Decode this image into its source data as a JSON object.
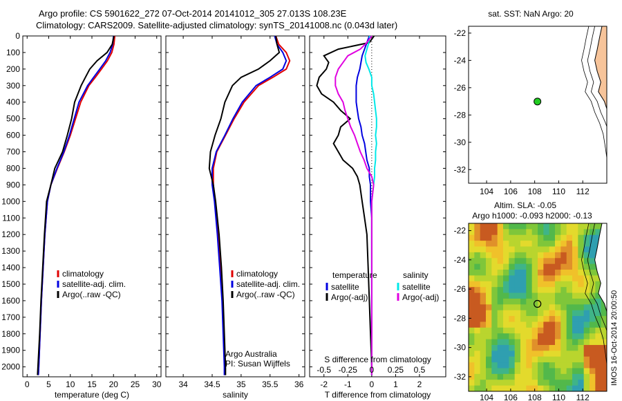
{
  "header": {
    "title_line1": "Argo profile: CS 5901622_272 07-Oct-2014 20141012_305 27.013S 108.23E",
    "title_line2": "Climatology: CARS2009. Satellite-adjusted climatology: synTS_20141008.nc (0.043d later)"
  },
  "colors": {
    "climatology": "#e00000",
    "satellite": "#0000e0",
    "argo": "#000000",
    "sat_salinity": "#00e8e8",
    "argo_salinity": "#e000e0",
    "land": "#f7c49a"
  },
  "chart_data": [
    {
      "type": "line",
      "name": "temperature-panel",
      "xlabel": "temperature (deg C)",
      "ylabel": "",
      "xlim": [
        -1,
        31
      ],
      "ylim": [
        2060,
        0
      ],
      "xticks": [
        0,
        5,
        10,
        15,
        20,
        25,
        30
      ],
      "yticks": [
        0,
        100,
        200,
        300,
        400,
        500,
        600,
        700,
        800,
        900,
        1000,
        1100,
        1200,
        1300,
        1400,
        1500,
        1600,
        1700,
        1800,
        1900,
        2000
      ],
      "legend": [
        "climatology",
        "satellite-adj. clim.",
        "Argo(..raw -QC)"
      ],
      "depth": [
        0,
        50,
        100,
        150,
        200,
        250,
        300,
        400,
        500,
        600,
        700,
        800,
        900,
        1000,
        1200,
        1400,
        1600,
        1800,
        2000,
        2050
      ],
      "series": [
        {
          "name": "climatology",
          "values": [
            20.3,
            20.1,
            19.6,
            18.6,
            17.2,
            15.8,
            14.3,
            12.4,
            11.2,
            10.0,
            8.6,
            7.0,
            5.5,
            4.7,
            4.1,
            3.7,
            3.3,
            3.0,
            2.7,
            2.6
          ]
        },
        {
          "name": "satellite-adj. clim.",
          "values": [
            20.0,
            19.8,
            19.2,
            18.2,
            16.8,
            15.4,
            14.0,
            12.0,
            10.9,
            9.8,
            8.5,
            6.9,
            5.5,
            4.7,
            4.1,
            3.7,
            3.3,
            3.0,
            2.7,
            2.6
          ]
        },
        {
          "name": "Argo(..raw -QC)",
          "values": [
            20.1,
            19.7,
            18.5,
            16.2,
            14.5,
            13.5,
            12.5,
            11.0,
            10.3,
            9.3,
            8.2,
            6.4,
            5.5,
            4.5,
            4.0,
            3.6,
            3.2,
            2.9,
            2.5,
            2.4
          ]
        }
      ]
    },
    {
      "type": "line",
      "name": "salinity-panel",
      "xlabel": "salinity",
      "xlim": [
        33.7,
        36.1
      ],
      "ylim": [
        2060,
        0
      ],
      "xticks": [
        34,
        34.5,
        35,
        35.5,
        36
      ],
      "legend": [
        "climatology",
        "satellite-adj. clim.",
        "Argo(..raw -QC)"
      ],
      "annotation": [
        "Argo Australia",
        "PI: Susan Wijffels"
      ],
      "depth": [
        0,
        50,
        100,
        150,
        200,
        250,
        300,
        400,
        500,
        600,
        700,
        800,
        900,
        1000,
        1200,
        1400,
        1600,
        1800,
        2000,
        2050
      ],
      "series": [
        {
          "name": "climatology",
          "values": [
            35.6,
            35.65,
            35.78,
            35.84,
            35.78,
            35.55,
            35.3,
            35.05,
            34.88,
            34.73,
            34.58,
            34.52,
            34.52,
            34.55,
            34.6,
            34.64,
            34.68,
            34.7,
            34.72,
            34.72
          ]
        },
        {
          "name": "satellite-adj. clim.",
          "values": [
            35.58,
            35.62,
            35.72,
            35.78,
            35.72,
            35.5,
            35.26,
            35.02,
            34.86,
            34.72,
            34.57,
            34.5,
            34.5,
            34.54,
            34.59,
            34.63,
            34.67,
            34.69,
            34.71,
            34.71
          ]
        },
        {
          "name": "Argo(..raw -QC)",
          "values": [
            35.6,
            35.62,
            35.66,
            35.5,
            35.3,
            35.0,
            34.85,
            34.72,
            34.65,
            34.55,
            34.47,
            34.45,
            34.52,
            34.56,
            34.62,
            34.66,
            34.69,
            34.71,
            34.73,
            34.73
          ]
        }
      ]
    },
    {
      "type": "line",
      "name": "difference-panel",
      "xlabel": "T difference from climatology",
      "xlabel_top": "S difference from climatology",
      "xlim": [
        -2.6,
        3.1
      ],
      "ylim": [
        2060,
        0
      ],
      "xticks": [
        -2,
        -1,
        0,
        1,
        2
      ],
      "s_ticks": [
        {
          "label": "-0.5",
          "value": -0.5
        },
        {
          "label": "-0.25",
          "value": -0.25
        },
        {
          "label": "0",
          "value": 0
        },
        {
          "label": "0.25",
          "value": 0.25
        },
        {
          "label": "0.5",
          "value": 0.5
        }
      ],
      "s_scale": 4,
      "legend_left_title": "temperature",
      "legend_right_title": "salinity",
      "legend": [
        "satellite",
        "Argo(-adj)",
        "satellite",
        "Argo(-adj)"
      ],
      "depth": [
        0,
        40,
        80,
        120,
        160,
        200,
        250,
        300,
        350,
        400,
        450,
        500,
        550,
        600,
        650,
        700,
        750,
        800,
        850,
        900,
        1000,
        1100,
        1200,
        1400,
        1600,
        1800,
        2000,
        2050
      ],
      "series": [
        {
          "name": "T satellite",
          "values": [
            -0.1,
            -0.2,
            -0.3,
            -0.4,
            -0.45,
            -0.5,
            -0.6,
            -0.65,
            -0.65,
            -0.65,
            -0.6,
            -0.55,
            -0.45,
            -0.4,
            -0.3,
            -0.25,
            -0.2,
            -0.1,
            -0.1,
            -0.05,
            -0.05,
            0.0,
            0.0,
            0.0,
            0.0,
            0.0,
            0.0,
            0.0
          ]
        },
        {
          "name": "T Argo(-adj)",
          "values": [
            0.1,
            -0.1,
            -1.4,
            -2.0,
            -1.8,
            -1.9,
            -2.2,
            -2.3,
            -2.1,
            -1.6,
            -1.3,
            -0.9,
            -1.3,
            -1.4,
            -1.6,
            -1.4,
            -1.2,
            -0.8,
            -0.6,
            -0.5,
            -0.4,
            -0.3,
            -0.2,
            -0.15,
            -0.1,
            -0.05,
            0.0,
            0.0
          ]
        },
        {
          "name": "S satellite",
          "values": [
            -0.02,
            -0.03,
            -0.05,
            -0.07,
            -0.06,
            -0.03,
            0.0,
            0.0,
            0.02,
            0.03,
            0.04,
            0.05,
            0.05,
            0.04,
            0.05,
            0.04,
            0.04,
            0.03,
            0.03,
            0.02,
            0.0,
            0.0,
            0.0,
            0.0,
            0.0,
            0.0,
            0.0,
            0.0
          ]
        },
        {
          "name": "S Argo(-adj)",
          "values": [
            0.0,
            -0.05,
            -0.12,
            -0.25,
            -0.3,
            -0.35,
            -0.38,
            -0.38,
            -0.35,
            -0.3,
            -0.28,
            -0.25,
            -0.22,
            -0.18,
            -0.15,
            -0.12,
            -0.08,
            -0.05,
            0.0,
            0.02,
            0.0,
            0.0,
            0.0,
            0.0,
            0.0,
            0.0,
            0.0,
            0.0
          ]
        }
      ]
    },
    {
      "type": "scatter",
      "name": "sst-map",
      "title": "sat. SST: NaN Argo: 20",
      "xlim": [
        102.5,
        114
      ],
      "ylim": [
        -33,
        -21.5
      ],
      "xticks": [
        104,
        106,
        108,
        110,
        112
      ],
      "yticks": [
        -22,
        -24,
        -26,
        -28,
        -30,
        -32
      ],
      "point": {
        "lon": 108.23,
        "lat": -27.013
      }
    },
    {
      "type": "heatmap",
      "name": "sla-map",
      "title_line1": "Altim. SLA: -0.05",
      "title_line2": "Argo h1000: -0.093 h2000: -0.13",
      "xlim": [
        102.5,
        114
      ],
      "ylim": [
        -33,
        -21.5
      ],
      "xticks": [
        104,
        106,
        108,
        110,
        112
      ],
      "yticks": [
        -22,
        -24,
        -26,
        -28,
        -30,
        -32
      ],
      "point": {
        "lon": 108.23,
        "lat": -27.013
      }
    }
  ],
  "side_stamp": "IMOS 16-Oct-2014 20:00:50"
}
